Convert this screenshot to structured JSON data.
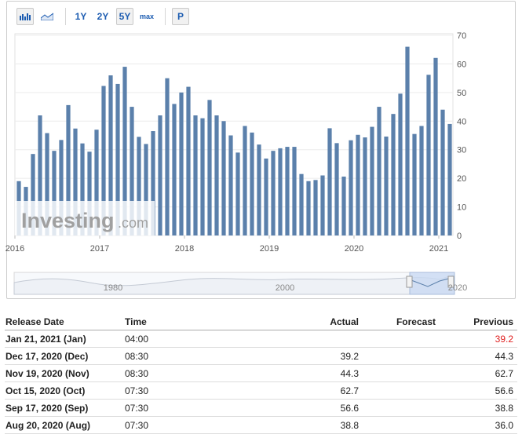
{
  "toolbar": {
    "icons": [
      "bar-chart-icon",
      "area-chart-icon"
    ],
    "ranges": [
      "1Y",
      "2Y",
      "5Y",
      "max"
    ],
    "selected_range": "5Y",
    "p_label": "P"
  },
  "chart_data": {
    "type": "bar",
    "x": [
      "2016-01",
      "2016-02",
      "2016-03",
      "2016-04",
      "2016-05",
      "2016-06",
      "2016-07",
      "2016-08",
      "2016-09",
      "2016-10",
      "2016-11",
      "2016-12",
      "2017-01",
      "2017-02",
      "2017-03",
      "2017-04",
      "2017-05",
      "2017-06",
      "2017-07",
      "2017-08",
      "2017-09",
      "2017-10",
      "2017-11",
      "2017-12",
      "2018-01",
      "2018-02",
      "2018-03",
      "2018-04",
      "2018-05",
      "2018-06",
      "2018-07",
      "2018-08",
      "2018-09",
      "2018-10",
      "2018-11",
      "2018-12",
      "2019-01",
      "2019-02",
      "2019-03",
      "2019-04",
      "2019-05",
      "2019-06",
      "2019-07",
      "2019-08",
      "2019-09",
      "2019-10",
      "2019-11",
      "2019-12",
      "2020-01",
      "2020-02",
      "2020-03",
      "2020-04",
      "2020-05",
      "2020-06",
      "2020-07",
      "2020-08",
      "2020-09",
      "2020-10",
      "2020-11",
      "2020-12"
    ],
    "values": [
      19,
      17,
      28.5,
      42,
      35.8,
      29.6,
      33.4,
      45.6,
      37.4,
      32.2,
      29.3,
      37,
      52.3,
      56,
      53,
      59,
      45,
      34.5,
      32,
      36.5,
      42,
      55,
      46,
      50,
      52,
      42,
      41,
      47.4,
      42,
      40,
      35,
      29,
      38.3,
      36,
      31.8,
      26.9,
      29.6,
      30.5,
      31,
      31,
      21.5,
      19,
      19.4,
      21,
      37.5,
      32.3,
      20.6,
      33.3,
      35.2,
      34.3,
      38,
      45,
      34.6,
      42.5,
      49.6,
      66,
      35.5,
      38.3,
      56.2,
      62.1
    ],
    "extra_values": [
      44,
      39
    ],
    "ylim": [
      0,
      70
    ],
    "yticks": [
      0,
      10,
      20,
      30,
      40,
      50,
      60,
      70
    ],
    "xtick_labels": [
      "2016",
      "2017",
      "2018",
      "2019",
      "2020",
      "2021"
    ],
    "navigator_labels": [
      "1980",
      "2000",
      "2020"
    ],
    "watermark": "Investing",
    "watermark_suffix": ".com",
    "bar_color": "#5b80ab"
  },
  "table": {
    "headers": {
      "date": "Release Date",
      "time": "Time",
      "actual": "Actual",
      "forecast": "Forecast",
      "previous": "Previous"
    },
    "rows": [
      {
        "date": "Jan 21, 2021 (Jan)",
        "time": "04:00",
        "actual": "",
        "forecast": "",
        "previous": "39.2",
        "previous_color": "#e02020"
      },
      {
        "date": "Dec 17, 2020 (Dec)",
        "time": "08:30",
        "actual": "39.2",
        "forecast": "",
        "previous": "44.3"
      },
      {
        "date": "Nov 19, 2020 (Nov)",
        "time": "08:30",
        "actual": "44.3",
        "forecast": "",
        "previous": "62.7"
      },
      {
        "date": "Oct 15, 2020 (Oct)",
        "time": "07:30",
        "actual": "62.7",
        "forecast": "",
        "previous": "56.6"
      },
      {
        "date": "Sep 17, 2020 (Sep)",
        "time": "07:30",
        "actual": "56.6",
        "forecast": "",
        "previous": "38.8"
      },
      {
        "date": "Aug 20, 2020 (Aug)",
        "time": "07:30",
        "actual": "38.8",
        "forecast": "",
        "previous": "36.0"
      }
    ]
  }
}
